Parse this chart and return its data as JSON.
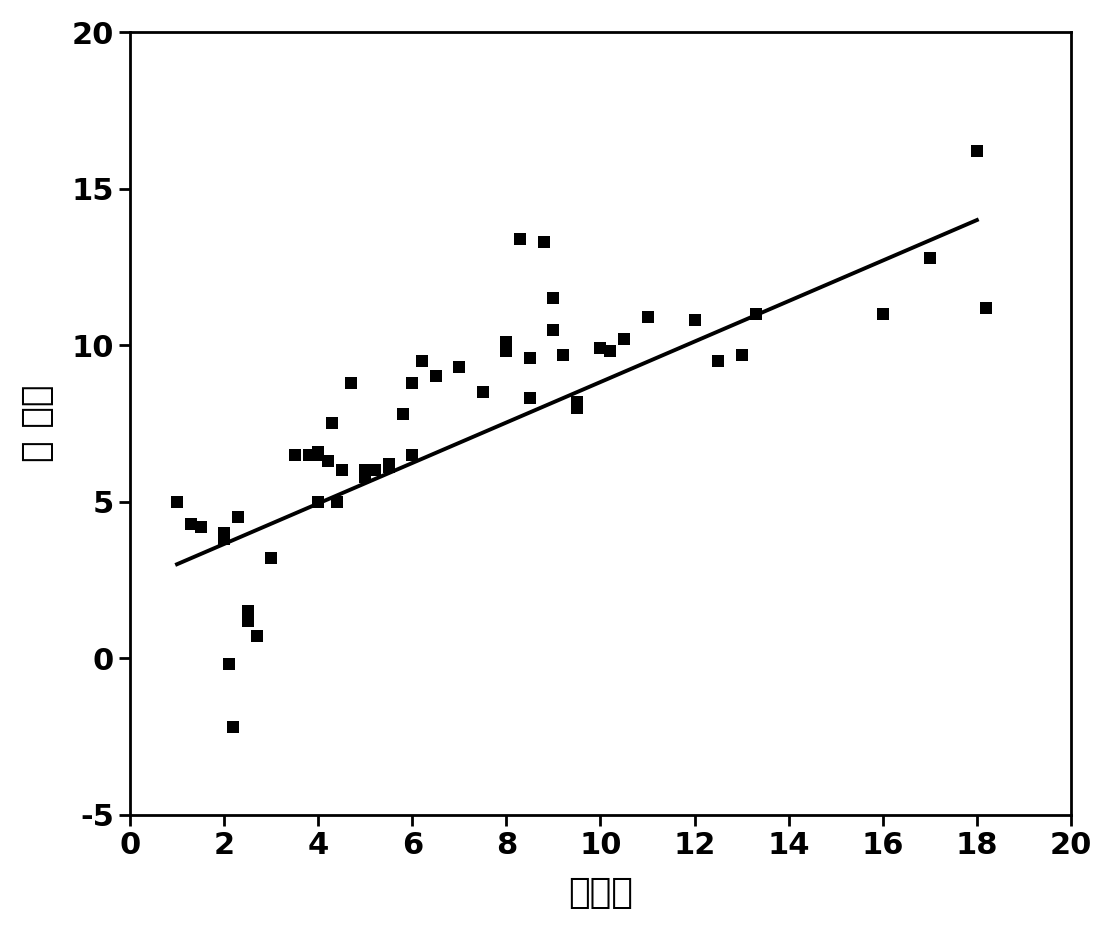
{
  "scatter_x": [
    1.0,
    1.3,
    1.5,
    2.0,
    2.0,
    2.1,
    2.2,
    2.3,
    2.5,
    2.5,
    2.7,
    3.0,
    3.5,
    3.8,
    4.0,
    4.0,
    4.0,
    4.2,
    4.3,
    4.4,
    4.5,
    4.5,
    4.7,
    5.0,
    5.0,
    5.2,
    5.5,
    5.5,
    5.8,
    6.0,
    6.0,
    6.2,
    6.5,
    7.0,
    7.5,
    8.0,
    8.0,
    8.0,
    8.3,
    8.5,
    8.5,
    8.8,
    9.0,
    9.0,
    9.2,
    9.5,
    9.5,
    10.0,
    10.2,
    10.5,
    11.0,
    12.0,
    12.5,
    13.0,
    13.3,
    16.0,
    17.0,
    18.0,
    18.2
  ],
  "scatter_y": [
    5.0,
    4.3,
    4.2,
    4.0,
    3.8,
    -0.2,
    -2.2,
    4.5,
    1.2,
    1.5,
    0.7,
    3.2,
    6.5,
    6.5,
    6.6,
    6.5,
    5.0,
    6.3,
    7.5,
    5.0,
    6.0,
    6.0,
    8.8,
    6.0,
    5.8,
    6.0,
    6.1,
    6.2,
    7.8,
    8.8,
    6.5,
    9.5,
    9.0,
    9.3,
    8.5,
    10.1,
    10.0,
    9.8,
    13.4,
    9.6,
    8.3,
    13.3,
    11.5,
    10.5,
    9.7,
    8.2,
    8.0,
    9.9,
    9.8,
    10.2,
    10.9,
    10.8,
    9.5,
    9.7,
    11.0,
    11.0,
    12.8,
    16.2,
    11.2
  ],
  "line_x": [
    1.0,
    18.0
  ],
  "line_y": [
    3.0,
    14.0
  ],
  "xlim": [
    0,
    20
  ],
  "ylim": [
    -5,
    20
  ],
  "xticks": [
    0,
    2,
    4,
    6,
    8,
    10,
    12,
    14,
    16,
    18,
    20
  ],
  "yticks": [
    -5,
    0,
    5,
    10,
    15,
    20
  ],
  "xlabel": "实测値",
  "ylabel": "预 测値",
  "marker_color": "#000000",
  "line_color": "#000000",
  "marker_size": 9,
  "line_width": 2.8,
  "background_color": "#ffffff",
  "xlabel_fontsize": 26,
  "ylabel_fontsize": 26,
  "tick_fontsize": 22
}
